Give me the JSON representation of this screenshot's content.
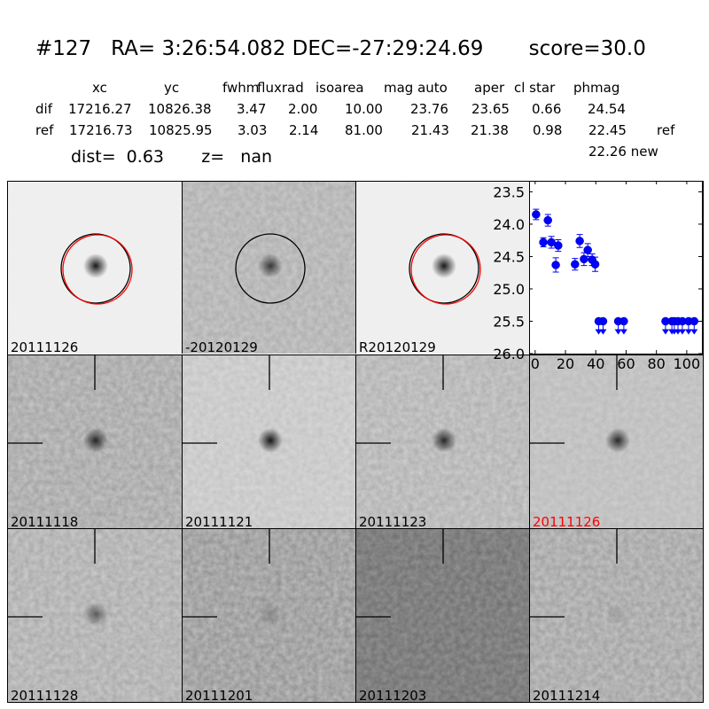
{
  "header": {
    "title": "#127   RA= 3:26:54.082 DEC=-27:29:24.69       score=30.0",
    "columns": [
      "xc",
      "yc",
      "fwhm",
      "fluxrad",
      "isoarea",
      "mag auto",
      "aper",
      "cl star",
      "phmag"
    ],
    "rows": [
      {
        "label": "dif",
        "values": [
          "17216.27",
          "10826.38",
          "3.47",
          "2.00",
          "10.00",
          "23.76",
          "23.65",
          "0.66",
          "24.54"
        ],
        "suffix": ""
      },
      {
        "label": "ref",
        "values": [
          "17216.73",
          "10825.95",
          "3.03",
          "2.14",
          "81.00",
          "21.43",
          "21.38",
          "0.98",
          "22.45"
        ],
        "suffix": "ref"
      }
    ],
    "extra_phmag": "22.26 new",
    "dist_line": "dist=  0.63       z=   nan"
  },
  "tiles": [
    {
      "label": "20111126",
      "base": "#efefef",
      "noise": 0.08,
      "blob": 0.9,
      "circles": [
        "#000000",
        "#ff0000"
      ],
      "cross": false,
      "label_color": "#000000"
    },
    {
      "label": "-20120129",
      "base": "#a9a9a9",
      "noise": 0.45,
      "blob": 0.7,
      "circles": [
        "#000000"
      ],
      "cross": false,
      "label_color": "#000000"
    },
    {
      "label": "R20120129",
      "base": "#efefef",
      "noise": 0.08,
      "blob": 0.9,
      "circles": [
        "#000000",
        "#ff0000"
      ],
      "cross": false,
      "label_color": "#000000"
    },
    null,
    {
      "label": "20111118",
      "base": "#9c9c9c",
      "noise": 0.5,
      "blob": 0.8,
      "circles": [],
      "cross": true,
      "label_color": "#000000"
    },
    {
      "label": "20111121",
      "base": "#c0c0c0",
      "noise": 0.45,
      "blob": 0.9,
      "circles": [],
      "cross": true,
      "label_color": "#000000"
    },
    {
      "label": "20111123",
      "base": "#aaaaaa",
      "noise": 0.5,
      "blob": 0.8,
      "circles": [],
      "cross": true,
      "label_color": "#000000"
    },
    {
      "label": "20111126",
      "base": "#b8b8b8",
      "noise": 0.35,
      "blob": 0.8,
      "circles": [],
      "cross": true,
      "label_color": "#ff0000"
    },
    {
      "label": "20111128",
      "base": "#a4a4a4",
      "noise": 0.5,
      "blob": 0.5,
      "circles": [],
      "cross": true,
      "label_color": "#000000"
    },
    {
      "label": "20111201",
      "base": "#8c8c8c",
      "noise": 0.5,
      "blob": 0.2,
      "circles": [],
      "cross": true,
      "label_color": "#000000"
    },
    {
      "label": "20111203",
      "base": "#6a6a6a",
      "noise": 0.45,
      "blob": 0.0,
      "circles": [],
      "cross": true,
      "label_color": "#000000"
    },
    {
      "label": "20111214",
      "base": "#9a9a9a",
      "noise": 0.5,
      "blob": 0.1,
      "circles": [],
      "cross": true,
      "label_color": "#000000"
    }
  ],
  "chart_data": {
    "type": "scatter",
    "xlim": [
      -4,
      110
    ],
    "ylim": [
      26.0,
      23.33
    ],
    "y_inverted": true,
    "xticks": [
      0,
      20,
      40,
      60,
      80,
      100
    ],
    "yticks": [
      23.5,
      24.0,
      24.5,
      25.0,
      25.5,
      26.0
    ],
    "ytick_labels": [
      "23.5",
      "24.0",
      "24.5",
      "25.0",
      "25.5",
      "26.0"
    ],
    "color": "#0000ff",
    "detections": {
      "x": [
        0.6,
        5.4,
        8.4,
        10.7,
        13.6,
        15.2,
        26.3,
        29.4,
        32.2,
        34.7,
        37.6,
        39.6
      ],
      "y": [
        23.85,
        24.28,
        23.94,
        24.28,
        24.63,
        24.33,
        24.62,
        24.26,
        24.54,
        24.4,
        24.55,
        24.62
      ],
      "yerr": [
        0.08,
        0.07,
        0.09,
        0.09,
        0.11,
        0.09,
        0.09,
        0.1,
        0.1,
        0.1,
        0.09,
        0.11
      ]
    },
    "upper_limits": {
      "x": [
        41.9,
        44.8,
        54.8,
        58.5,
        86.0,
        90.2,
        91.8,
        94.2,
        97.1,
        101.2,
        104.9
      ],
      "y": [
        25.5,
        25.5,
        25.5,
        25.5,
        25.5,
        25.5,
        25.5,
        25.5,
        25.5,
        25.5,
        25.5
      ]
    }
  }
}
